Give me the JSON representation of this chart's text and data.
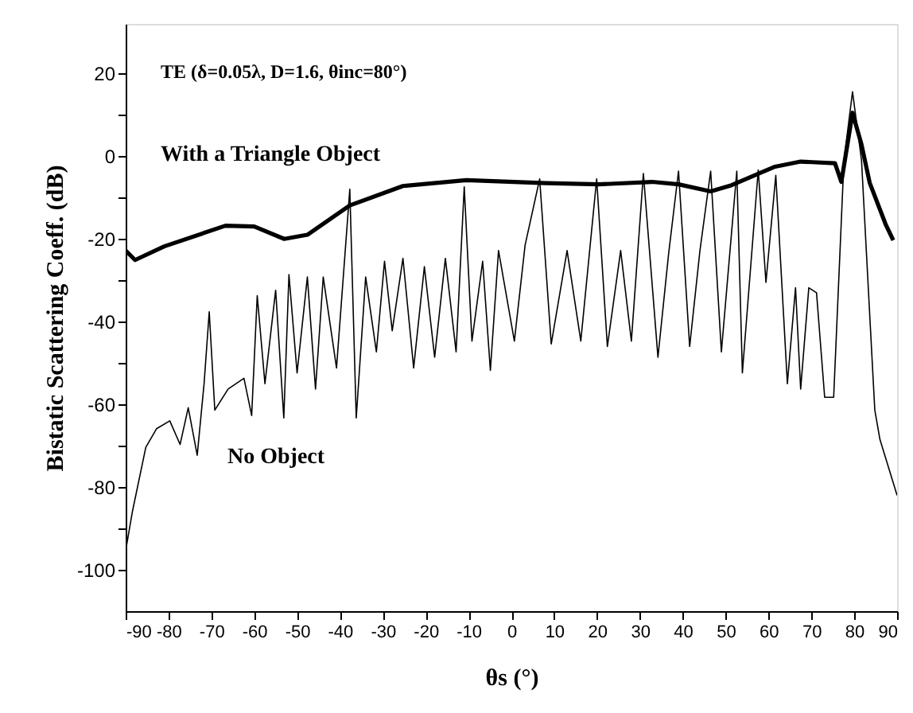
{
  "chart_data": {
    "type": "line",
    "xlabel": "θs (°)",
    "ylabel": "Bistatic Scattering Coeff. (dB)",
    "annotations": [
      "TE (δ=0.05λ, D=1.6, θinc=80°)"
    ],
    "xlim": [
      -90,
      90
    ],
    "xticks": [
      -90,
      -80,
      -70,
      -60,
      -50,
      -40,
      -30,
      -20,
      -10,
      0,
      10,
      20,
      30,
      40,
      50,
      60,
      70,
      80,
      90
    ],
    "ylim": [
      -110,
      32
    ],
    "yticks": [
      -100,
      {
        "value": -90,
        "label": null
      },
      -80,
      {
        "value": -70,
        "label": null
      },
      -60,
      {
        "value": -50,
        "label": null
      },
      -40,
      {
        "value": -30,
        "label": null
      },
      -20,
      {
        "value": -10,
        "label": null
      },
      0,
      {
        "value": 10,
        "label": null
      },
      20
    ],
    "grid": false,
    "legend": false,
    "marker": "none",
    "line_style": "solid",
    "series": [
      {
        "name": "With a Triangle Object",
        "color": "#000000",
        "x": [
          -90,
          -87.8,
          -81,
          -66.7,
          -60,
          -53,
          -47.6,
          -37.7,
          -25.3,
          -10.5,
          8,
          20.5,
          32.8,
          39,
          46.5,
          51.4,
          61.3,
          67.5,
          75.5,
          77,
          79.6,
          81.7,
          83.6,
          87.3,
          89.1
        ],
        "values": [
          -22.8,
          -25.1,
          -21.8,
          -16.8,
          -17,
          -20,
          -19,
          -11.9,
          -7.2,
          -5.8,
          -6.5,
          -6.8,
          -6.2,
          -6.8,
          -8.5,
          -7,
          -2.6,
          -1.3,
          -1.7,
          -6.2,
          10.5,
          2.8,
          -6.4,
          -16.4,
          -20.3
        ]
      },
      {
        "name": "No Object",
        "color": "#000000",
        "x": [
          -90,
          -88.4,
          -85.3,
          -82.8,
          -79.7,
          -77.3,
          -75.4,
          -73.3,
          -71.7,
          -70.5,
          -69.2,
          -66.1,
          -62.4,
          -60.6,
          -59.3,
          -57.5,
          -55,
          -53.1,
          -51.9,
          -50,
          -47.6,
          -45.7,
          -43.9,
          -40.8,
          -37.7,
          -36.2,
          -34,
          -31.5,
          -29.6,
          -27.8,
          -25.3,
          -22.8,
          -20.3,
          -17.9,
          -15.4,
          -12.9,
          -11,
          -9.2,
          -6.7,
          -4.9,
          -3,
          0.7,
          3.2,
          6.6,
          9.3,
          13,
          16.2,
          19.9,
          22.4,
          25.5,
          28,
          30.8,
          34.2,
          36.7,
          39,
          41.6,
          44,
          46.5,
          49,
          52.6,
          53.9,
          57.6,
          59.4,
          61.7,
          64.4,
          66.3,
          67.5,
          69.4,
          71.2,
          73.1,
          75.2,
          76.2,
          77.6,
          79.6,
          81.7,
          83.8,
          84.8,
          86,
          90
        ],
        "values": [
          -95.4,
          -85.8,
          -70.4,
          -65.9,
          -64,
          -69.7,
          -60.8,
          -72.3,
          -55,
          -37.6,
          -61.4,
          -56.3,
          -53.7,
          -62.7,
          -33.7,
          -55,
          -32.4,
          -63.3,
          -28.6,
          -52.4,
          -29.2,
          -56.3,
          -29.2,
          -51.2,
          -8,
          -63.3,
          -29.2,
          -47.3,
          -25.4,
          -42.2,
          -24.7,
          -51.2,
          -26.7,
          -48.6,
          -24.7,
          -47.3,
          -7.4,
          -44.7,
          -25.4,
          -51.8,
          -22.8,
          -44.7,
          -21.5,
          -5.5,
          -45.4,
          -22.8,
          -44.7,
          -5.5,
          -46,
          -22.8,
          -44.7,
          -4.2,
          -48.6,
          -23.5,
          -3.6,
          -46,
          -22.8,
          -3.6,
          -47.3,
          -3.6,
          -52.4,
          -3.3,
          -30.5,
          -4.6,
          -55,
          -31.8,
          -56.3,
          -31.8,
          -33,
          -58.3,
          -58.3,
          -34.4,
          -1,
          15.6,
          -1,
          -42,
          -61.4,
          -68.5,
          -82
        ]
      }
    ]
  }
}
